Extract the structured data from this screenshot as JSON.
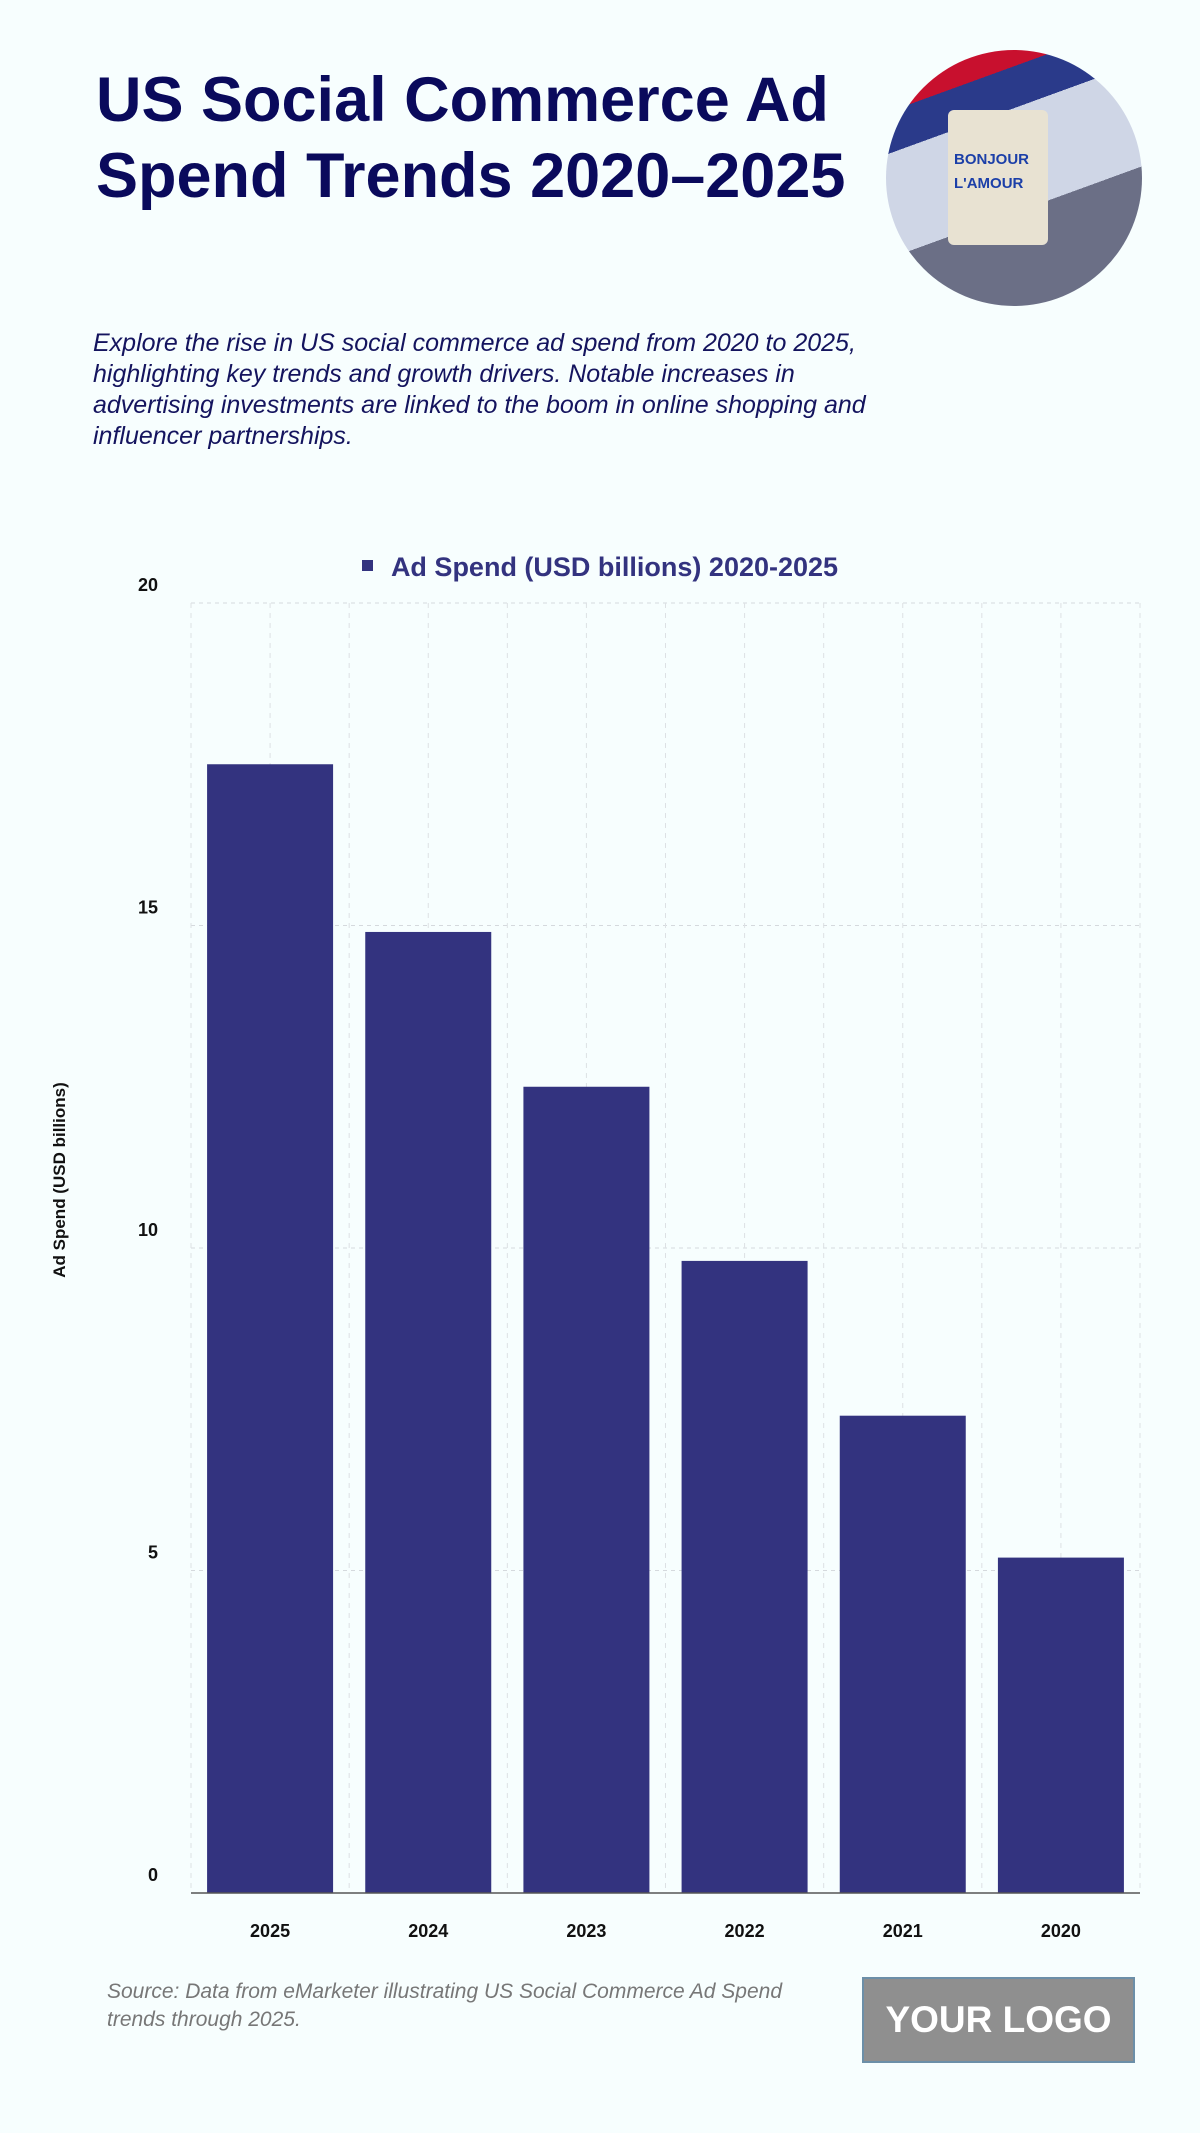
{
  "header": {
    "title": "US Social Commerce Ad Spend Trends 2020–2025",
    "subtitle": "Explore the rise in US social commerce ad spend from 2020 to 2025, highlighting key trends and growth drivers. Notable increases in advertising investments are linked to the boom in online shopping and influencer partnerships.",
    "photo_text": "BONJOUR L'AMOUR"
  },
  "chart_data": {
    "type": "bar",
    "categories": [
      "2025",
      "2024",
      "2023",
      "2022",
      "2021",
      "2020"
    ],
    "series": [
      {
        "name": "Ad Spend (USD billions) 2020-2025",
        "values": [
          17.5,
          14.9,
          12.5,
          9.8,
          7.4,
          5.2
        ]
      }
    ],
    "xlabel": "",
    "ylabel": "Ad Spend (USD billions)",
    "ylim": [
      0,
      20
    ],
    "yticks": [
      0,
      5,
      10,
      15,
      20
    ],
    "grid": true,
    "legend": "top",
    "bar_color": "#33337f"
  },
  "footer": {
    "source": "Source: Data from eMarketer illustrating US Social Commerce Ad Spend trends through 2025.",
    "logo": "YOUR LOGO"
  }
}
